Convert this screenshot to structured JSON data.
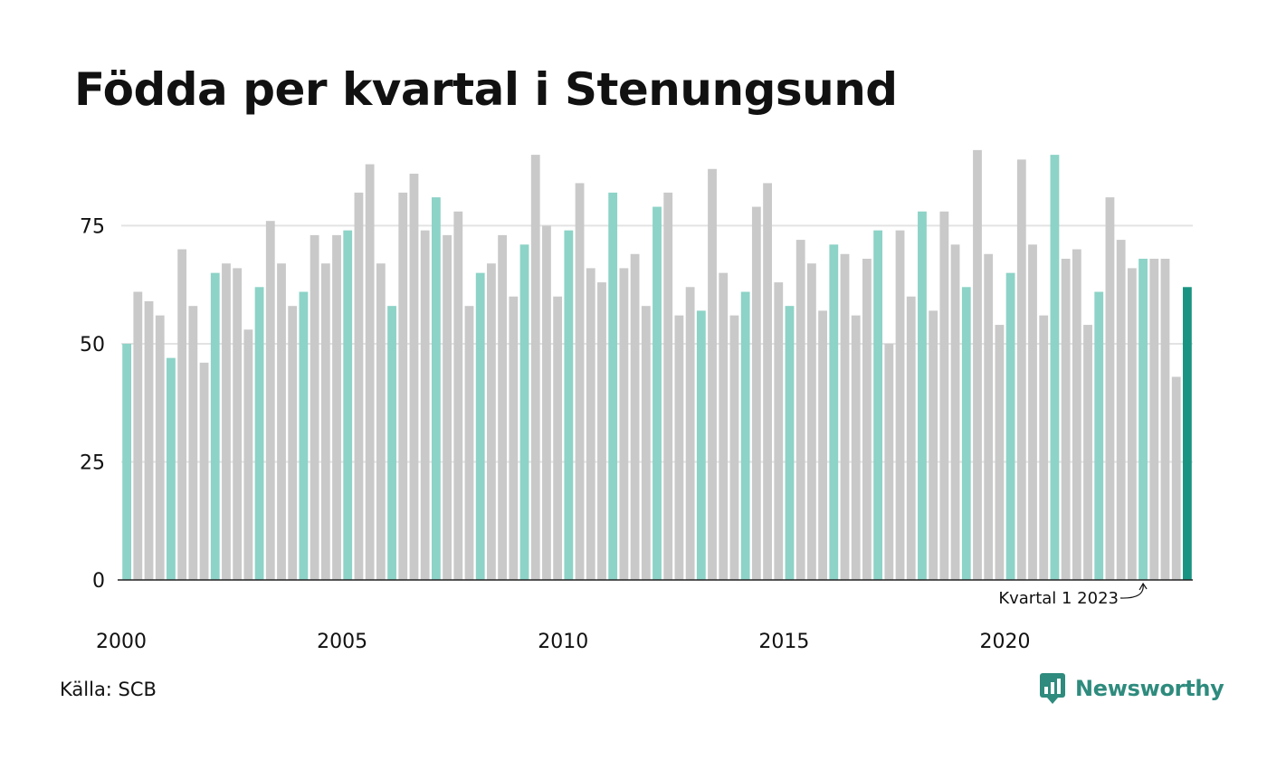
{
  "title": "Födda per kvartal i Stenungsund",
  "source": "Källa: SCB",
  "brand": "Newsworthy",
  "colors": {
    "q1": "#8dd3c7",
    "other": "#c9c9c9",
    "highlight": "#1a9482",
    "grid": "#e3e3e3",
    "axis": "#222222",
    "brand": "#2e8b7d"
  },
  "chart_data": {
    "type": "bar",
    "ylim": [
      0,
      95
    ],
    "yticks": [
      0,
      25,
      50,
      75
    ],
    "grid": true,
    "xtick_labels": [
      "2000",
      "2005",
      "2010",
      "2015",
      "2020"
    ],
    "annotation": "Kvartal 1 2023",
    "start_year": 2000,
    "quarters_per_year": 4,
    "values": [
      50,
      61,
      59,
      56,
      47,
      70,
      58,
      46,
      65,
      67,
      66,
      53,
      62,
      76,
      67,
      58,
      61,
      73,
      67,
      73,
      74,
      82,
      88,
      67,
      58,
      82,
      86,
      74,
      81,
      73,
      78,
      58,
      65,
      67,
      73,
      60,
      71,
      90,
      75,
      60,
      74,
      84,
      66,
      63,
      82,
      66,
      69,
      58,
      79,
      82,
      56,
      62,
      57,
      87,
      65,
      56,
      61,
      79,
      84,
      63,
      58,
      72,
      67,
      57,
      71,
      69,
      56,
      68,
      74,
      50,
      74,
      60,
      78,
      57,
      78,
      71,
      62,
      91,
      69,
      54,
      65,
      89,
      71,
      56,
      90,
      68,
      70,
      54,
      61,
      81,
      72,
      66,
      68,
      68,
      68,
      43,
      62
    ]
  }
}
